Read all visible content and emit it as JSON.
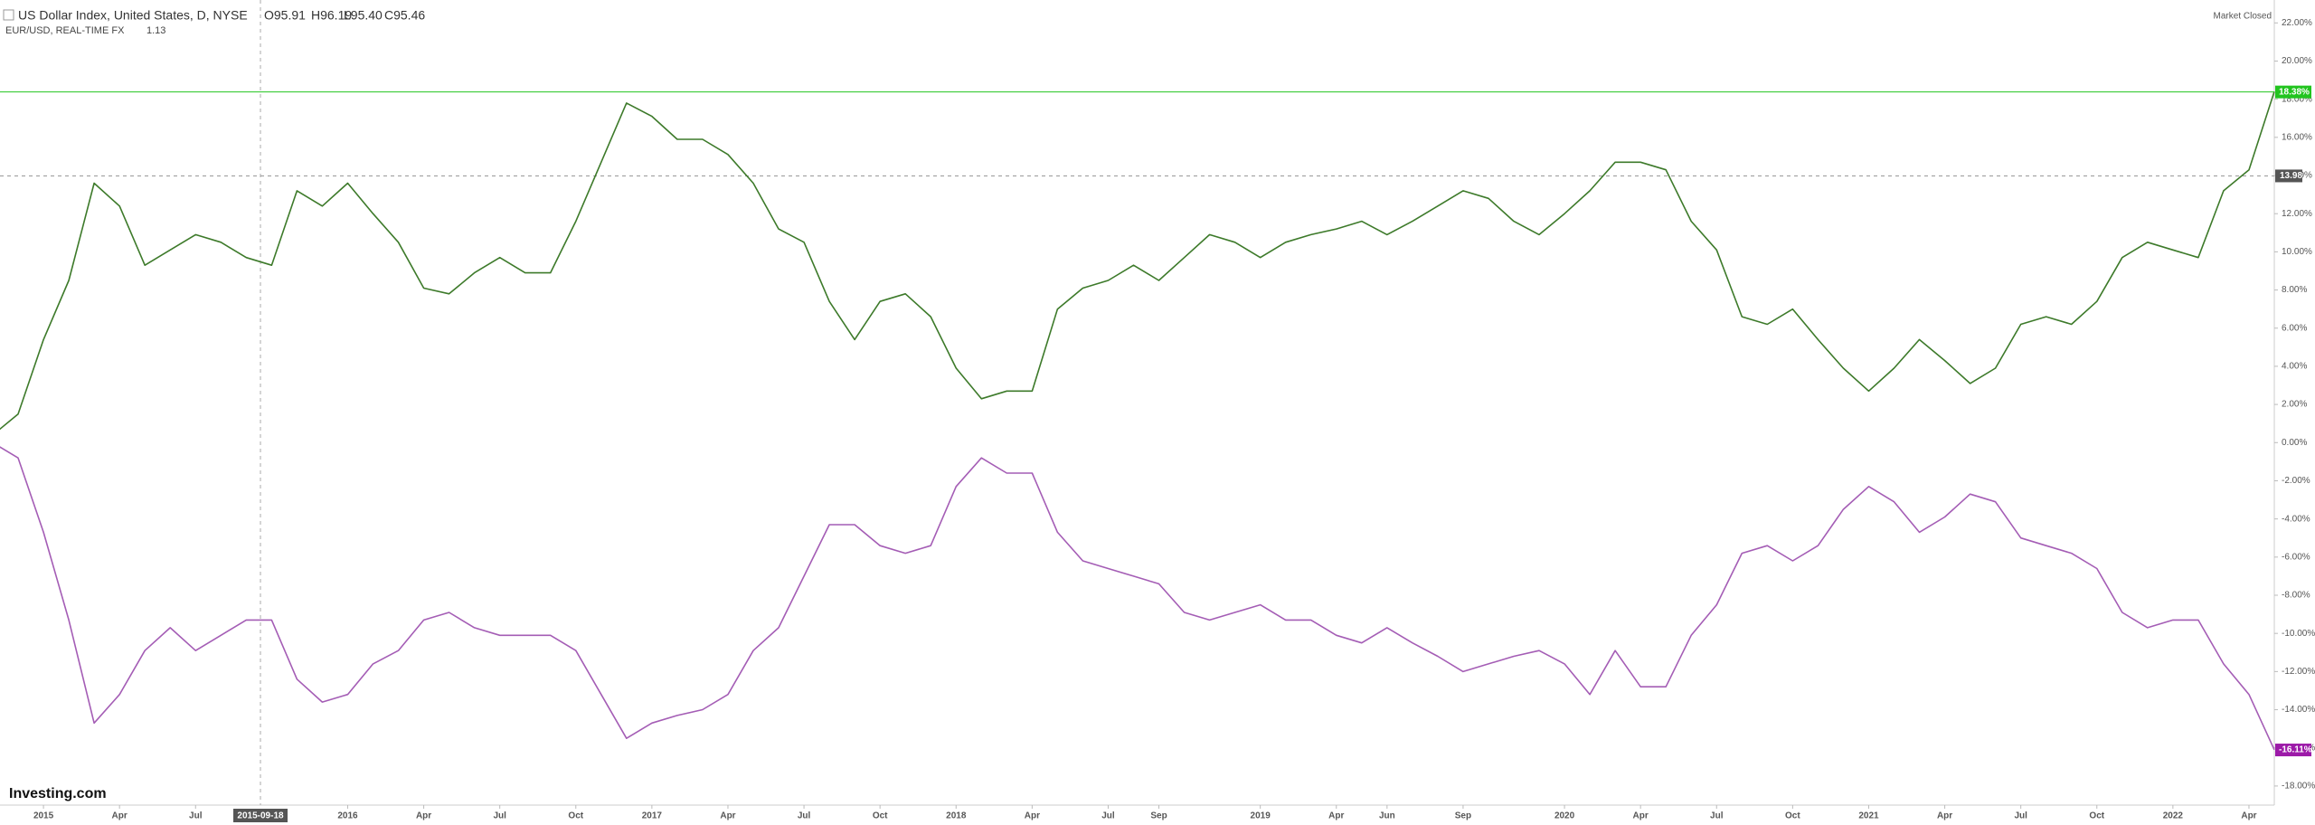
{
  "header": {
    "title": "US Dollar Index, United States, D, NYSE",
    "ohlc": [
      "O95.91",
      "H96.19",
      "L95.40",
      "C95.46"
    ],
    "sub_title": "EUR/USD, REAL-TIME FX",
    "sub_value": "1.13",
    "status": "Market Closed",
    "brand": "Investing.com"
  },
  "chart_data": {
    "type": "line",
    "x": [
      "2014-11",
      "2014-12",
      "2015-01",
      "2015-02",
      "2015-03",
      "2015-04",
      "2015-05",
      "2015-06",
      "2015-07",
      "2015-08",
      "2015-09",
      "2015-10",
      "2015-11",
      "2015-12",
      "2016-01",
      "2016-02",
      "2016-03",
      "2016-04",
      "2016-05",
      "2016-06",
      "2016-07",
      "2016-08",
      "2016-09",
      "2016-10",
      "2016-11",
      "2016-12",
      "2017-01",
      "2017-02",
      "2017-03",
      "2017-04",
      "2017-05",
      "2017-06",
      "2017-07",
      "2017-08",
      "2017-09",
      "2017-10",
      "2017-11",
      "2017-12",
      "2018-01",
      "2018-02",
      "2018-03",
      "2018-04",
      "2018-05",
      "2018-06",
      "2018-07",
      "2018-08",
      "2018-09",
      "2018-10",
      "2018-11",
      "2018-12",
      "2019-01",
      "2019-02",
      "2019-03",
      "2019-04",
      "2019-05",
      "2019-06",
      "2019-07",
      "2019-08",
      "2019-09",
      "2019-10",
      "2019-11",
      "2019-12",
      "2020-01",
      "2020-02",
      "2020-03",
      "2020-04",
      "2020-05",
      "2020-06",
      "2020-07",
      "2020-08",
      "2020-09",
      "2020-10",
      "2020-11",
      "2020-12",
      "2021-01",
      "2021-02",
      "2021-03",
      "2021-04",
      "2021-05",
      "2021-06",
      "2021-07",
      "2021-08",
      "2021-09",
      "2021-10",
      "2021-11",
      "2021-12",
      "2022-01",
      "2022-02",
      "2022-03",
      "2022-04",
      "2022-05"
    ],
    "series": [
      {
        "name": "US Dollar Index",
        "color": "#3d7a2a",
        "values": [
          0.4,
          1.5,
          5.4,
          8.5,
          13.6,
          12.4,
          9.3,
          10.1,
          10.9,
          10.5,
          9.7,
          9.3,
          13.2,
          12.4,
          13.6,
          12.0,
          10.5,
          8.1,
          7.8,
          8.9,
          9.7,
          8.9,
          8.9,
          11.6,
          14.7,
          17.8,
          17.1,
          15.9,
          15.9,
          15.1,
          13.6,
          11.2,
          10.5,
          7.4,
          5.4,
          7.4,
          7.8,
          6.6,
          3.9,
          2.3,
          2.7,
          2.7,
          7.0,
          8.1,
          8.5,
          9.3,
          8.5,
          9.7,
          10.9,
          10.5,
          9.7,
          10.5,
          10.9,
          11.2,
          11.6,
          10.9,
          11.6,
          12.4,
          13.2,
          12.8,
          11.6,
          10.9,
          12.0,
          13.2,
          14.7,
          14.7,
          14.3,
          11.6,
          10.1,
          6.6,
          6.2,
          7.0,
          5.4,
          3.9,
          2.7,
          3.9,
          5.4,
          4.3,
          3.1,
          3.9,
          6.2,
          6.6,
          6.2,
          7.4,
          9.7,
          10.5,
          10.1,
          9.7,
          13.2,
          14.3,
          18.4
        ]
      },
      {
        "name": "EUR/USD",
        "color": "#a45db5",
        "values": [
          0,
          -0.8,
          -4.7,
          -9.3,
          -14.7,
          -13.2,
          -10.9,
          -9.7,
          -10.9,
          -10.1,
          -9.3,
          -9.3,
          -12.4,
          -13.6,
          -13.2,
          -11.6,
          -10.9,
          -9.3,
          -8.9,
          -9.7,
          -10.1,
          -10.1,
          -10.1,
          -10.9,
          -13.2,
          -15.5,
          -14.7,
          -14.3,
          -14.0,
          -13.2,
          -10.9,
          -9.7,
          -7.0,
          -4.3,
          -4.3,
          -5.4,
          -5.8,
          -5.4,
          -2.3,
          -0.8,
          -1.6,
          -1.6,
          -4.7,
          -6.2,
          -6.6,
          -7.0,
          -7.4,
          -8.9,
          -9.3,
          -8.9,
          -8.5,
          -9.3,
          -9.3,
          -10.1,
          -10.5,
          -9.7,
          -10.5,
          -11.2,
          -12.0,
          -11.6,
          -11.2,
          -10.9,
          -11.6,
          -13.2,
          -10.9,
          -12.8,
          -12.8,
          -10.1,
          -8.5,
          -5.8,
          -5.4,
          -6.2,
          -5.4,
          -3.5,
          -2.3,
          -3.1,
          -4.7,
          -3.9,
          -2.7,
          -3.1,
          -5.0,
          -5.4,
          -5.8,
          -6.6,
          -8.9,
          -9.7,
          -9.3,
          -9.3,
          -11.6,
          -13.2,
          -16.1
        ]
      }
    ],
    "xlim": [
      "2014-11",
      "2022-05"
    ],
    "xticks": [
      {
        "value": "2015-01",
        "label": "2015"
      },
      {
        "value": "2015-04",
        "label": "Apr"
      },
      {
        "value": "2015-07",
        "label": "Jul"
      },
      {
        "value": "2016-01",
        "label": "2016"
      },
      {
        "value": "2016-04",
        "label": "Apr"
      },
      {
        "value": "2016-07",
        "label": "Jul"
      },
      {
        "value": "2016-10",
        "label": "Oct"
      },
      {
        "value": "2017-01",
        "label": "2017"
      },
      {
        "value": "2017-04",
        "label": "Apr"
      },
      {
        "value": "2017-07",
        "label": "Jul"
      },
      {
        "value": "2017-10",
        "label": "Oct"
      },
      {
        "value": "2018-01",
        "label": "2018"
      },
      {
        "value": "2018-04",
        "label": "Apr"
      },
      {
        "value": "2018-07",
        "label": "Jul"
      },
      {
        "value": "2018-09",
        "label": "Sep"
      },
      {
        "value": "2019-01",
        "label": "2019"
      },
      {
        "value": "2019-04",
        "label": "Apr"
      },
      {
        "value": "2019-06",
        "label": "Jun"
      },
      {
        "value": "2019-09",
        "label": "Sep"
      },
      {
        "value": "2020-01",
        "label": "2020"
      },
      {
        "value": "2020-04",
        "label": "Apr"
      },
      {
        "value": "2020-07",
        "label": "Jul"
      },
      {
        "value": "2020-10",
        "label": "Oct"
      },
      {
        "value": "2021-01",
        "label": "2021"
      },
      {
        "value": "2021-04",
        "label": "Apr"
      },
      {
        "value": "2021-07",
        "label": "Jul"
      },
      {
        "value": "2021-10",
        "label": "Oct"
      },
      {
        "value": "2022-01",
        "label": "2022"
      },
      {
        "value": "2022-04",
        "label": "Apr"
      }
    ],
    "ylim": [
      -19,
      23.2
    ],
    "yticks": [
      {
        "value": 22,
        "label": "22.00%"
      },
      {
        "value": 20,
        "label": "20.00%"
      },
      {
        "value": 18,
        "label": "18.00%"
      },
      {
        "value": 16,
        "label": "16.00%"
      },
      {
        "value": 14,
        "label": "14.00%"
      },
      {
        "value": 12,
        "label": "12.00%"
      },
      {
        "value": 10,
        "label": "10.00%"
      },
      {
        "value": 8,
        "label": "8.00%"
      },
      {
        "value": 6,
        "label": "6.00%"
      },
      {
        "value": 4,
        "label": "4.00%"
      },
      {
        "value": 2,
        "label": "2.00%"
      },
      {
        "value": 0,
        "label": "0.00%"
      },
      {
        "value": -2,
        "label": "-2.00%"
      },
      {
        "value": -4,
        "label": "-4.00%"
      },
      {
        "value": -6,
        "label": "-6.00%"
      },
      {
        "value": -8,
        "label": "-8.00%"
      },
      {
        "value": -10,
        "label": "-10.00%"
      },
      {
        "value": -12,
        "label": "-12.00%"
      },
      {
        "value": -14,
        "label": "-14.00%"
      },
      {
        "value": -16,
        "label": "-16.00%"
      },
      {
        "value": -18,
        "label": "-18.00%"
      }
    ],
    "grid": false,
    "price_lines": [
      {
        "value": 18.38,
        "label": "18.38%",
        "color": "#22c41f"
      },
      {
        "value": -16.11,
        "label": "-16.11%",
        "color": "#9c1aa8"
      }
    ],
    "crosshair": {
      "x": "2015-09-18",
      "y": 13.98,
      "y_label": "13.98"
    }
  }
}
